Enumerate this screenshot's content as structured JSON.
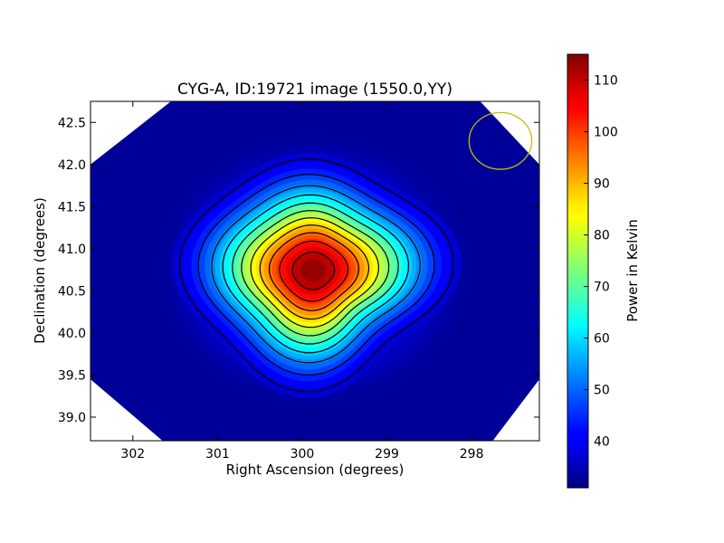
{
  "chart_data": {
    "type": "heatmap",
    "title": "CYG-A, ID:19721 image (1550.0,YY)",
    "xlabel": "Right Ascension (degrees)",
    "ylabel": "Declination (degrees)",
    "xlim": [
      302.5,
      297.2
    ],
    "ylim": [
      38.72,
      42.75
    ],
    "x_ticks": [
      302,
      301,
      300,
      299,
      298
    ],
    "y_ticks": [
      39.0,
      39.5,
      40.0,
      40.5,
      41.0,
      41.5,
      42.0,
      42.5
    ],
    "colorbar": {
      "label": "Power in Kelvin",
      "range": [
        31,
        115
      ],
      "ticks": [
        40,
        50,
        60,
        70,
        80,
        90,
        100,
        110
      ],
      "colormap": "jet"
    },
    "source": {
      "ra": 299.87,
      "dec": 40.74,
      "peak": 115,
      "background": 31
    },
    "contour_levels": [
      40,
      47,
      54,
      61,
      68,
      75,
      82,
      89,
      96,
      103,
      110
    ],
    "beam_circle": {
      "ra": 297.66,
      "dec": 42.28,
      "radius_deg": 0.37,
      "color": "#bfbf00"
    },
    "grid": false
  }
}
